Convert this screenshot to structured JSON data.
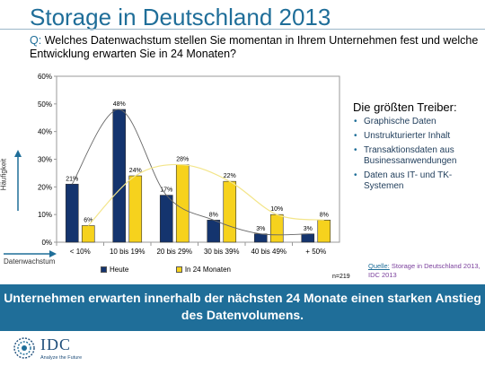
{
  "header": {
    "title": "Storage in Deutschland 2013",
    "question_prefix": "Q:",
    "question": "Welches Datenwachstum stellen Sie momentan in Ihrem Unternehmen fest und welche Entwicklung erwarten Sie in 24 Monaten?"
  },
  "chart_data": {
    "type": "bar",
    "title": "",
    "xlabel": "Datenwachstum",
    "ylabel": "Häufigkeit",
    "ylim": [
      0,
      60
    ],
    "yticks": [
      "0%",
      "10%",
      "20%",
      "30%",
      "40%",
      "50%",
      "60%"
    ],
    "categories": [
      "< 10%",
      "10 bis 19%",
      "20 bis 29%",
      "30 bis 39%",
      "40 bis 49%",
      "+ 50%"
    ],
    "series": [
      {
        "name": "Heute",
        "color": "#14346e",
        "values": [
          21,
          48,
          17,
          8,
          3,
          3
        ],
        "labels": [
          "21%",
          "48%",
          "17%",
          "8%",
          "3%",
          "3%"
        ]
      },
      {
        "name": "In 24 Monaten",
        "color": "#f6d21d",
        "values": [
          6,
          24,
          28,
          22,
          10,
          8
        ],
        "labels": [
          "6%",
          "24%",
          "28%",
          "22%",
          "10%",
          "8%"
        ]
      }
    ],
    "trendlines": true,
    "grid": false,
    "legend": "bottom"
  },
  "drivers": {
    "heading": "Die größten Treiber:",
    "items": [
      "Graphische Daten",
      "Unstrukturierter Inhalt",
      "Transaktionsdaten aus Businessanwendungen",
      "Daten aus IT- und TK-Systemen"
    ]
  },
  "footer": {
    "n": "n=219",
    "source_label": "Quelle:",
    "source_text": "Storage in Deutschland 2013, IDC 2013",
    "banner": "Unternehmen erwarten innerhalb der nächsten 24 Monate einen starken Anstieg des Datenvolumens.",
    "logo_text": "IDC",
    "logo_tagline": "Analyze the Future"
  },
  "colors": {
    "accent": "#1f6e99",
    "series_today": "#14346e",
    "series_future": "#f6d21d"
  }
}
